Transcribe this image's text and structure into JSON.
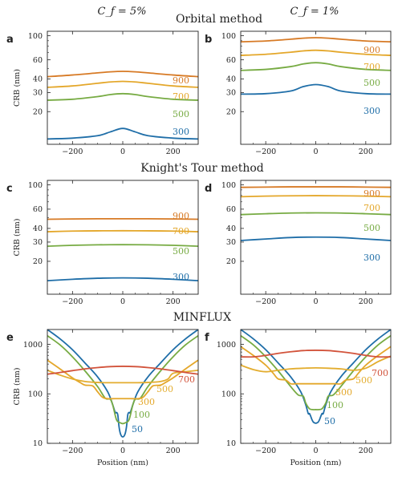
{
  "colors": {
    "50": "#1f6ea8",
    "100": "#77ab43",
    "300": "#1f6ea8",
    "500": "#77ab43",
    "700": "#e4a72a",
    "900": "#d77a25",
    "minflux_300": "#e4a72a",
    "minflux_500": "#e3ad2f",
    "minflux_700": "#d2533b"
  },
  "column_titles": [
    "C_f = 5%",
    "C_f = 1%"
  ],
  "section_titles": [
    "Orbital method",
    "Knight's Tour method",
    "MINFLUX"
  ],
  "chart_data": [
    {
      "panel": "a",
      "type": "line",
      "section": "Orbital method",
      "column": "C_f = 5%",
      "ylabel": "CRB (nm)",
      "xlabel": "",
      "xlim": [
        -300,
        300
      ],
      "ylim": [
        10,
        110
      ],
      "yscale": "log",
      "xticks": [
        -200,
        0,
        200
      ],
      "yticks": [
        20,
        30,
        40,
        60,
        100
      ],
      "series": [
        {
          "name": "300",
          "x": [
            -300,
            -200,
            -100,
            -50,
            0,
            50,
            100,
            200,
            300
          ],
          "y": [
            11.2,
            11.4,
            12.0,
            13.0,
            14.0,
            13.0,
            12.0,
            11.4,
            11.2
          ]
        },
        {
          "name": "500",
          "x": [
            -300,
            -200,
            -100,
            -50,
            0,
            50,
            100,
            200,
            300
          ],
          "y": [
            25.5,
            26.0,
            27.5,
            28.7,
            29.3,
            28.7,
            27.5,
            26.0,
            25.5
          ]
        },
        {
          "name": "700",
          "x": [
            -300,
            -200,
            -100,
            -50,
            0,
            50,
            100,
            200,
            300
          ],
          "y": [
            33.5,
            34.5,
            36.5,
            37.5,
            38.0,
            37.5,
            36.5,
            34.5,
            33.5
          ]
        },
        {
          "name": "900",
          "x": [
            -300,
            -200,
            -100,
            -50,
            0,
            50,
            100,
            200,
            300
          ],
          "y": [
            42.0,
            43.5,
            45.5,
            46.5,
            47.0,
            46.5,
            45.5,
            43.5,
            42.0
          ]
        }
      ]
    },
    {
      "panel": "b",
      "type": "line",
      "section": "Orbital method",
      "column": "C_f = 1%",
      "ylabel": "",
      "xlabel": "",
      "xlim": [
        -300,
        300
      ],
      "ylim": [
        10,
        110
      ],
      "yscale": "log",
      "xticks": [
        -200,
        0,
        200
      ],
      "yticks": [
        20,
        30,
        40,
        60,
        100
      ],
      "series": [
        {
          "name": "300",
          "x": [
            -300,
            -200,
            -100,
            -50,
            0,
            50,
            100,
            200,
            300
          ],
          "y": [
            29.0,
            29.3,
            31.0,
            34.0,
            35.5,
            34.0,
            31.0,
            29.3,
            29.0
          ]
        },
        {
          "name": "500",
          "x": [
            -300,
            -200,
            -100,
            -50,
            0,
            50,
            100,
            200,
            300
          ],
          "y": [
            48.0,
            49.0,
            52.0,
            55.0,
            56.5,
            55.0,
            52.0,
            49.0,
            48.0
          ]
        },
        {
          "name": "700",
          "x": [
            -300,
            -200,
            -100,
            -50,
            0,
            50,
            100,
            200,
            300
          ],
          "y": [
            66.0,
            67.5,
            70.5,
            72.5,
            73.5,
            72.5,
            70.5,
            67.5,
            66.0
          ]
        },
        {
          "name": "900",
          "x": [
            -300,
            -200,
            -100,
            -50,
            0,
            50,
            100,
            200,
            300
          ],
          "y": [
            88.0,
            89.5,
            93.0,
            95.0,
            96.0,
            95.0,
            93.0,
            89.5,
            88.0
          ]
        }
      ]
    },
    {
      "panel": "c",
      "type": "line",
      "section": "Knight's Tour method",
      "column": "C_f = 5%",
      "ylabel": "CRB (nm)",
      "xlabel": "",
      "xlim": [
        -300,
        300
      ],
      "ylim": [
        10,
        110
      ],
      "yscale": "log",
      "xticks": [
        -200,
        0,
        200
      ],
      "yticks": [
        20,
        30,
        40,
        60,
        100
      ],
      "series": [
        {
          "name": "300",
          "x": [
            -300,
            -200,
            -100,
            0,
            100,
            200,
            300
          ],
          "y": [
            13.3,
            13.7,
            14.0,
            14.1,
            14.0,
            13.7,
            13.3
          ]
        },
        {
          "name": "500",
          "x": [
            -300,
            -200,
            -100,
            0,
            100,
            200,
            300
          ],
          "y": [
            27.5,
            28.0,
            28.3,
            28.4,
            28.3,
            28.0,
            27.5
          ]
        },
        {
          "name": "700",
          "x": [
            -300,
            -200,
            -100,
            0,
            100,
            200,
            300
          ],
          "y": [
            37.3,
            37.8,
            38.0,
            38.1,
            38.0,
            37.8,
            37.3
          ]
        },
        {
          "name": "900",
          "x": [
            -300,
            -200,
            -100,
            0,
            100,
            200,
            300
          ],
          "y": [
            48.5,
            48.8,
            49.0,
            49.0,
            49.0,
            48.8,
            48.5
          ]
        }
      ]
    },
    {
      "panel": "d",
      "type": "line",
      "section": "Knight's Tour method",
      "column": "C_f = 1%",
      "ylabel": "",
      "xlabel": "",
      "xlim": [
        -300,
        300
      ],
      "ylim": [
        10,
        110
      ],
      "yscale": "log",
      "xticks": [
        -200,
        0,
        200
      ],
      "yticks": [
        20,
        30,
        40,
        60,
        100
      ],
      "series": [
        {
          "name": "300",
          "x": [
            -300,
            -200,
            -100,
            0,
            100,
            200,
            300
          ],
          "y": [
            31.0,
            32.0,
            33.0,
            33.3,
            33.0,
            32.0,
            31.0
          ]
        },
        {
          "name": "500",
          "x": [
            -300,
            -200,
            -100,
            0,
            100,
            200,
            300
          ],
          "y": [
            53.5,
            54.5,
            55.3,
            55.5,
            55.3,
            54.5,
            53.5
          ]
        },
        {
          "name": "700",
          "x": [
            -300,
            -200,
            -100,
            0,
            100,
            200,
            300
          ],
          "y": [
            78.0,
            79.0,
            79.5,
            79.7,
            79.5,
            79.0,
            78.0
          ]
        },
        {
          "name": "900",
          "x": [
            -300,
            -200,
            -100,
            0,
            100,
            200,
            300
          ],
          "y": [
            95.0,
            95.5,
            96.0,
            96.0,
            96.0,
            95.5,
            95.0
          ]
        }
      ]
    },
    {
      "panel": "e",
      "type": "line",
      "section": "MINFLUX",
      "column": "C_f = 5%",
      "ylabel": "CRB (nm)",
      "xlabel": "Position (nm)",
      "xlim": [
        -300,
        300
      ],
      "ylim": [
        10,
        2000
      ],
      "yscale": "log",
      "xticks": [
        -200,
        0,
        200
      ],
      "yticks": [
        10,
        100,
        1000
      ],
      "series": [
        {
          "name": "50",
          "x": [
            -300,
            -250,
            -200,
            -150,
            -100,
            -60,
            -40,
            -30,
            -25,
            -20,
            -15,
            -10,
            -5,
            0,
            5,
            10,
            15,
            20,
            25,
            30,
            40,
            60,
            100,
            150,
            200,
            250,
            300
          ],
          "y": [
            2000,
            1300,
            780,
            420,
            220,
            110,
            60,
            42,
            42,
            38,
            22,
            16,
            14,
            13.5,
            14,
            16,
            22,
            38,
            42,
            42,
            60,
            110,
            220,
            420,
            780,
            1300,
            2000
          ]
        },
        {
          "name": "100",
          "x": [
            -300,
            -250,
            -200,
            -150,
            -100,
            -70,
            -50,
            -40,
            -25,
            -10,
            0,
            10,
            25,
            40,
            50,
            70,
            100,
            150,
            200,
            250,
            300
          ],
          "y": [
            1500,
            980,
            560,
            290,
            140,
            82,
            78,
            60,
            30,
            26,
            25,
            26,
            30,
            60,
            78,
            82,
            140,
            290,
            560,
            980,
            1500
          ]
        },
        {
          "name": "300",
          "x": [
            -300,
            -250,
            -200,
            -170,
            -150,
            -120,
            -100,
            -80,
            -60,
            -30,
            0,
            30,
            60,
            80,
            100,
            120,
            150,
            170,
            200,
            250,
            300
          ],
          "y": [
            480,
            320,
            210,
            170,
            150,
            145,
            110,
            85,
            80,
            80,
            80,
            80,
            80,
            85,
            110,
            145,
            150,
            170,
            210,
            320,
            480
          ]
        },
        {
          "name": "500",
          "x": [
            -300,
            -250,
            -200,
            -150,
            -100,
            -50,
            0,
            50,
            100,
            150,
            180,
            200,
            250,
            300
          ],
          "y": [
            300,
            240,
            200,
            178,
            170,
            168,
            168,
            168,
            170,
            178,
            200,
            260,
            280,
            300
          ]
        },
        {
          "name": "700",
          "x": [
            -300,
            -250,
            -200,
            -150,
            -100,
            -50,
            0,
            50,
            100,
            150,
            200,
            250,
            300
          ],
          "y": [
            250,
            270,
            295,
            320,
            340,
            355,
            360,
            355,
            340,
            320,
            295,
            270,
            250
          ]
        }
      ]
    },
    {
      "panel": "f",
      "type": "line",
      "section": "MINFLUX",
      "column": "C_f = 1%",
      "ylabel": "",
      "xlabel": "Position (nm)",
      "xlim": [
        -300,
        300
      ],
      "ylim": [
        10,
        2000
      ],
      "yscale": "log",
      "xticks": [
        -200,
        0,
        200
      ],
      "yticks": [
        10,
        100,
        1000
      ],
      "series": [
        {
          "name": "50",
          "x": [
            -300,
            -250,
            -200,
            -150,
            -100,
            -60,
            -40,
            -30,
            -25,
            -20,
            -15,
            -10,
            -5,
            0,
            5,
            10,
            15,
            20,
            25,
            30,
            40,
            60,
            100,
            150,
            200,
            250,
            300
          ],
          "y": [
            2000,
            1300,
            780,
            420,
            220,
            110,
            60,
            40,
            40,
            35,
            30,
            27,
            26,
            25.5,
            26,
            27,
            30,
            35,
            40,
            40,
            60,
            110,
            220,
            420,
            780,
            1300,
            2000
          ]
        },
        {
          "name": "100",
          "x": [
            -300,
            -250,
            -200,
            -150,
            -100,
            -70,
            -50,
            -40,
            -25,
            -10,
            0,
            10,
            25,
            40,
            50,
            70,
            100,
            150,
            200,
            250,
            300
          ],
          "y": [
            1500,
            980,
            560,
            290,
            140,
            95,
            90,
            65,
            50,
            48,
            48,
            48,
            50,
            65,
            90,
            95,
            140,
            290,
            560,
            980,
            1500
          ]
        },
        {
          "name": "300",
          "x": [
            -300,
            -250,
            -200,
            -170,
            -150,
            -120,
            -100,
            -80,
            -60,
            -30,
            0,
            30,
            60,
            80,
            100,
            120,
            150,
            170,
            200,
            250,
            300
          ],
          "y": [
            900,
            600,
            380,
            260,
            200,
            190,
            160,
            160,
            160,
            160,
            160,
            160,
            160,
            160,
            160,
            190,
            200,
            260,
            380,
            600,
            900
          ]
        },
        {
          "name": "500",
          "x": [
            -300,
            -250,
            -200,
            -150,
            -100,
            -50,
            0,
            50,
            100,
            150,
            200,
            250,
            300
          ],
          "y": [
            380,
            310,
            280,
            300,
            320,
            330,
            335,
            330,
            320,
            300,
            330,
            450,
            580
          ]
        },
        {
          "name": "700",
          "x": [
            -300,
            -250,
            -200,
            -150,
            -100,
            -50,
            0,
            50,
            100,
            150,
            200,
            250,
            300
          ],
          "y": [
            560,
            560,
            600,
            660,
            710,
            750,
            760,
            750,
            710,
            660,
            600,
            560,
            560
          ]
        }
      ]
    }
  ]
}
